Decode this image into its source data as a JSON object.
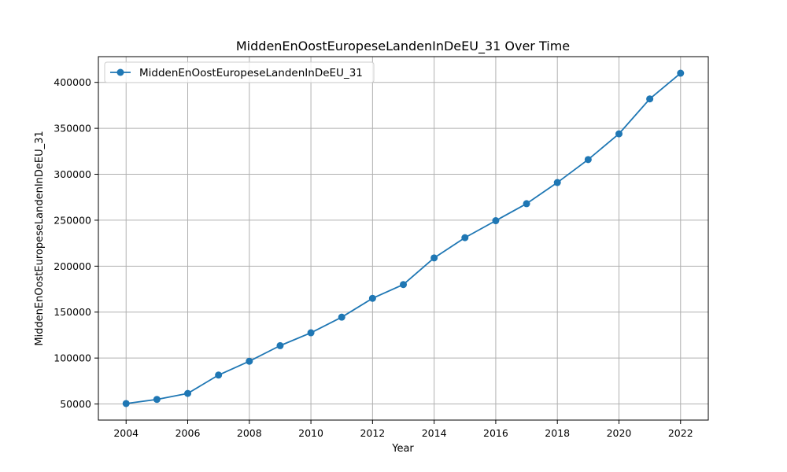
{
  "chart_data": {
    "type": "line",
    "title": "MiddenEnOostEuropeseLandenInDeEU_31 Over Time",
    "xlabel": "Year",
    "ylabel": "MiddenEnOostEuropeseLandenInDeEU_31",
    "x": [
      2004,
      2005,
      2006,
      2007,
      2008,
      2009,
      2010,
      2011,
      2012,
      2013,
      2014,
      2015,
      2016,
      2017,
      2018,
      2019,
      2020,
      2021,
      2022
    ],
    "series": [
      {
        "name": "MiddenEnOostEuropeseLandenInDeEU_31",
        "color": "#1f77b4",
        "marker": "circle",
        "values": [
          50500,
          55000,
          61500,
          81500,
          96500,
          113500,
          127500,
          144500,
          165000,
          180000,
          209000,
          231000,
          249500,
          268000,
          291000,
          316000,
          344000,
          382000,
          410000
        ]
      }
    ],
    "xlim": [
      2003.1,
      2022.9
    ],
    "ylim": [
      32500,
      428000
    ],
    "xticks": [
      2004,
      2006,
      2008,
      2010,
      2012,
      2014,
      2016,
      2018,
      2020,
      2022
    ],
    "yticks": [
      50000,
      100000,
      150000,
      200000,
      250000,
      300000,
      350000,
      400000
    ],
    "grid": true,
    "legend_position": "top-left"
  }
}
